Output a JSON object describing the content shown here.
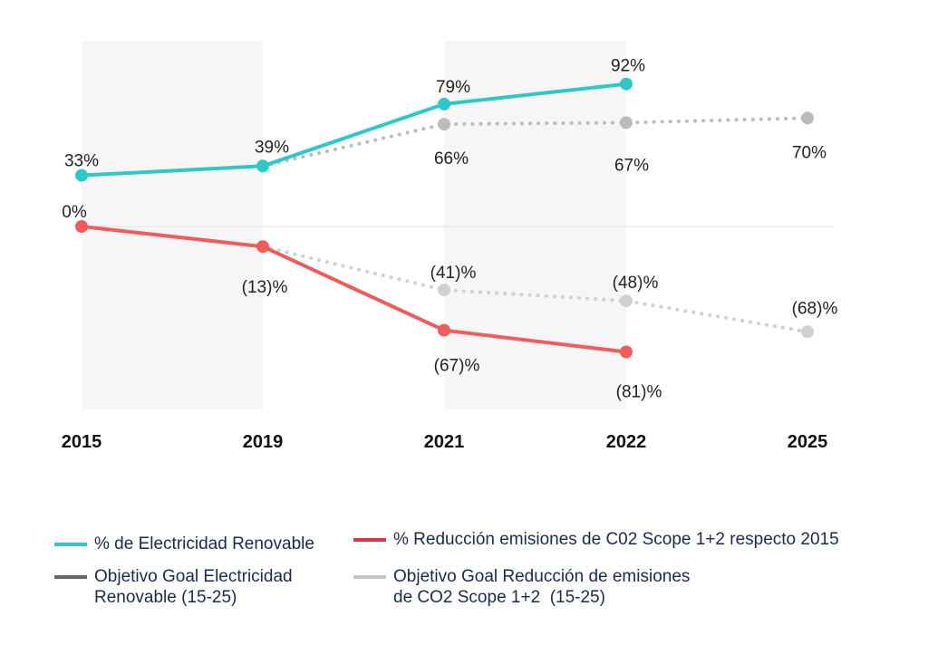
{
  "chart_data": {
    "type": "line",
    "categories": [
      "2015",
      "2019",
      "2021",
      "2022",
      "2025"
    ],
    "series": [
      {
        "name": "% de Electricidad Renovable",
        "values": [
          33,
          39,
          79,
          92,
          null
        ],
        "labels": [
          "33%",
          "39%",
          "79%",
          "92%",
          ""
        ],
        "color": "#2ec8c8",
        "style": "solid"
      },
      {
        "name": "Objetivo Goal Electricidad Renovable (15-25)",
        "values": [
          null,
          39,
          66,
          67,
          70
        ],
        "labels": [
          "",
          "",
          "66%",
          "67%",
          "70%"
        ],
        "color": "#bcbcbc",
        "style": "dotted"
      },
      {
        "name": "% Reducción emisiones de C02 Scope 1+2 respecto 2015",
        "values": [
          0,
          -13,
          -67,
          -81,
          null
        ],
        "labels": [
          "0%",
          "(13)%",
          "(67)%",
          "(81)%",
          ""
        ],
        "color": "#ee5c5c",
        "style": "solid"
      },
      {
        "name": "Objetivo Goal Reducción de emisiones de CO2 Scope 1+2 (15-25)",
        "values": [
          null,
          -13,
          -41,
          -48,
          -68
        ],
        "labels": [
          "",
          "",
          "(41)%",
          "(48)%",
          "(68)%"
        ],
        "color": "#d0d0d0",
        "style": "dotted"
      }
    ],
    "shaded_periods": [
      [
        "2015",
        "2019"
      ],
      [
        "2021",
        "2022"
      ]
    ],
    "zero_line": true
  },
  "legend": {
    "items": [
      {
        "lines": [
          "% de Electricidad Renovable"
        ],
        "color": "#2ec8c8"
      },
      {
        "lines": [
          "% Reducción emisiones de C02 Scope 1+2 respecto 2015"
        ],
        "color": "#d63a3a"
      },
      {
        "lines": [
          "Objetivo Goal Electricidad",
          "Renovable (15-25)"
        ],
        "color": "#666666"
      },
      {
        "lines": [
          "Objetivo Goal Reducción de emisiones",
          "de CO2 Scope 1+2  (15-25)"
        ],
        "color": "#c4c4c4"
      }
    ]
  }
}
